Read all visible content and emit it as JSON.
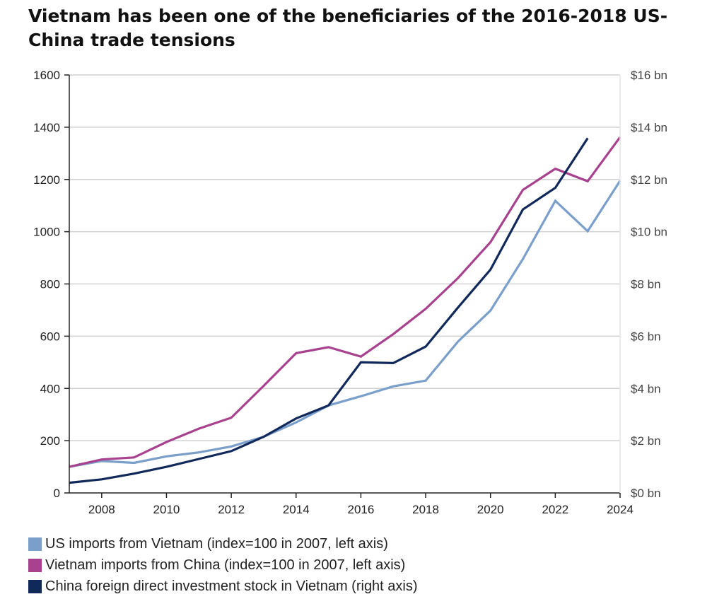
{
  "chart_data": {
    "type": "line",
    "title": "Vietnam has been one of the beneficiaries of the 2016-2018 US-China trade tensions",
    "xlim": [
      2007,
      2024
    ],
    "x_ticks": [
      "2008",
      "2010",
      "2012",
      "2014",
      "2016",
      "2018",
      "2020",
      "2022",
      "2024"
    ],
    "y_left": {
      "lim": [
        0,
        1600
      ],
      "ticks": [
        "0",
        "200",
        "400",
        "600",
        "800",
        "1000",
        "1200",
        "1400",
        "1600"
      ]
    },
    "y_right": {
      "lim": [
        0,
        16
      ],
      "ticks": [
        "$0 bn",
        "$2 bn",
        "$4 bn",
        "$6 bn",
        "$8 bn",
        "$10 bn",
        "$12 bn",
        "$14 bn",
        "$16 bn"
      ]
    },
    "grid": "horizontal",
    "legend_position": "bottom",
    "series": [
      {
        "name": "US imports from Vietnam (index=100 in 2007, left axis)",
        "axis": "left",
        "color": "#7b9fcb",
        "x": [
          2007,
          2008,
          2009,
          2010,
          2011,
          2012,
          2013,
          2014,
          2015,
          2016,
          2017,
          2018,
          2019,
          2020,
          2021,
          2022,
          2023,
          2024
        ],
        "values": [
          100,
          122,
          115,
          140,
          155,
          178,
          215,
          270,
          335,
          370,
          408,
          430,
          580,
          698,
          895,
          1118,
          1002,
          1195
        ]
      },
      {
        "name": "Vietnam imports from China (index=100 in 2007, left axis)",
        "axis": "left",
        "color": "#a8428f",
        "x": [
          2007,
          2008,
          2009,
          2010,
          2011,
          2012,
          2013,
          2014,
          2015,
          2016,
          2017,
          2018,
          2019,
          2020,
          2021,
          2022,
          2023,
          2024
        ],
        "values": [
          100,
          128,
          136,
          195,
          246,
          288,
          410,
          535,
          558,
          522,
          608,
          705,
          823,
          960,
          1160,
          1241,
          1193,
          1362
        ]
      },
      {
        "name": "China foreign direct investment stock in Vietnam (right axis)",
        "axis": "right",
        "color": "#10295a",
        "x": [
          2007,
          2008,
          2009,
          2010,
          2011,
          2012,
          2013,
          2014,
          2015,
          2016,
          2017,
          2018,
          2019,
          2020,
          2021,
          2022,
          2023
        ],
        "values": [
          0.39,
          0.52,
          0.74,
          1.0,
          1.3,
          1.6,
          2.15,
          2.85,
          3.35,
          5.0,
          4.97,
          5.6,
          7.1,
          8.55,
          10.85,
          11.68,
          13.58
        ]
      }
    ]
  }
}
